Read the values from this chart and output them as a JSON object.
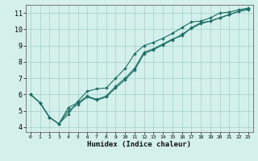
{
  "xlabel": "Humidex (Indice chaleur)",
  "bg_color": "#d4f0eb",
  "grid_color": "#a8d5cc",
  "line_color": "#1a6e65",
  "xlim": [
    -0.5,
    23.5
  ],
  "ylim": [
    3.7,
    11.5
  ],
  "xticks": [
    0,
    1,
    2,
    3,
    4,
    5,
    6,
    7,
    8,
    9,
    10,
    11,
    12,
    13,
    14,
    15,
    16,
    17,
    18,
    19,
    20,
    21,
    22,
    23
  ],
  "yticks": [
    4,
    5,
    6,
    7,
    8,
    9,
    10,
    11
  ],
  "line1_x": [
    0,
    1,
    2,
    3,
    4,
    5,
    6,
    7,
    8,
    9,
    10,
    11,
    12,
    13,
    14,
    15,
    16,
    17,
    18,
    19,
    20,
    21,
    22,
    23
  ],
  "line1_y": [
    6.0,
    5.5,
    4.6,
    4.2,
    5.2,
    5.5,
    5.9,
    5.7,
    5.9,
    6.5,
    7.0,
    7.6,
    8.6,
    8.8,
    9.1,
    9.4,
    9.6,
    10.1,
    10.4,
    10.5,
    10.7,
    10.9,
    11.1,
    11.2
  ],
  "line2_x": [
    0,
    1,
    2,
    3,
    4,
    5,
    6,
    7,
    8,
    9,
    10,
    11,
    12,
    13,
    14,
    15,
    16,
    17,
    18,
    19,
    20,
    21,
    22,
    23
  ],
  "line2_y": [
    6.0,
    5.5,
    4.6,
    4.2,
    5.0,
    5.4,
    5.85,
    5.65,
    5.85,
    6.4,
    6.9,
    7.5,
    8.5,
    8.75,
    9.05,
    9.35,
    9.7,
    10.05,
    10.35,
    10.5,
    10.7,
    10.9,
    11.1,
    11.25
  ],
  "line3_x": [
    0,
    1,
    2,
    3,
    4,
    5,
    6,
    7,
    8,
    9,
    10,
    11,
    12,
    13,
    14,
    15,
    16,
    17,
    18,
    19,
    20,
    21,
    22,
    23
  ],
  "line3_y": [
    6.0,
    5.5,
    4.6,
    4.2,
    4.8,
    5.6,
    6.2,
    6.35,
    6.4,
    7.0,
    7.6,
    8.5,
    9.0,
    9.2,
    9.45,
    9.75,
    10.1,
    10.45,
    10.5,
    10.7,
    11.0,
    11.05,
    11.2,
    11.3
  ]
}
